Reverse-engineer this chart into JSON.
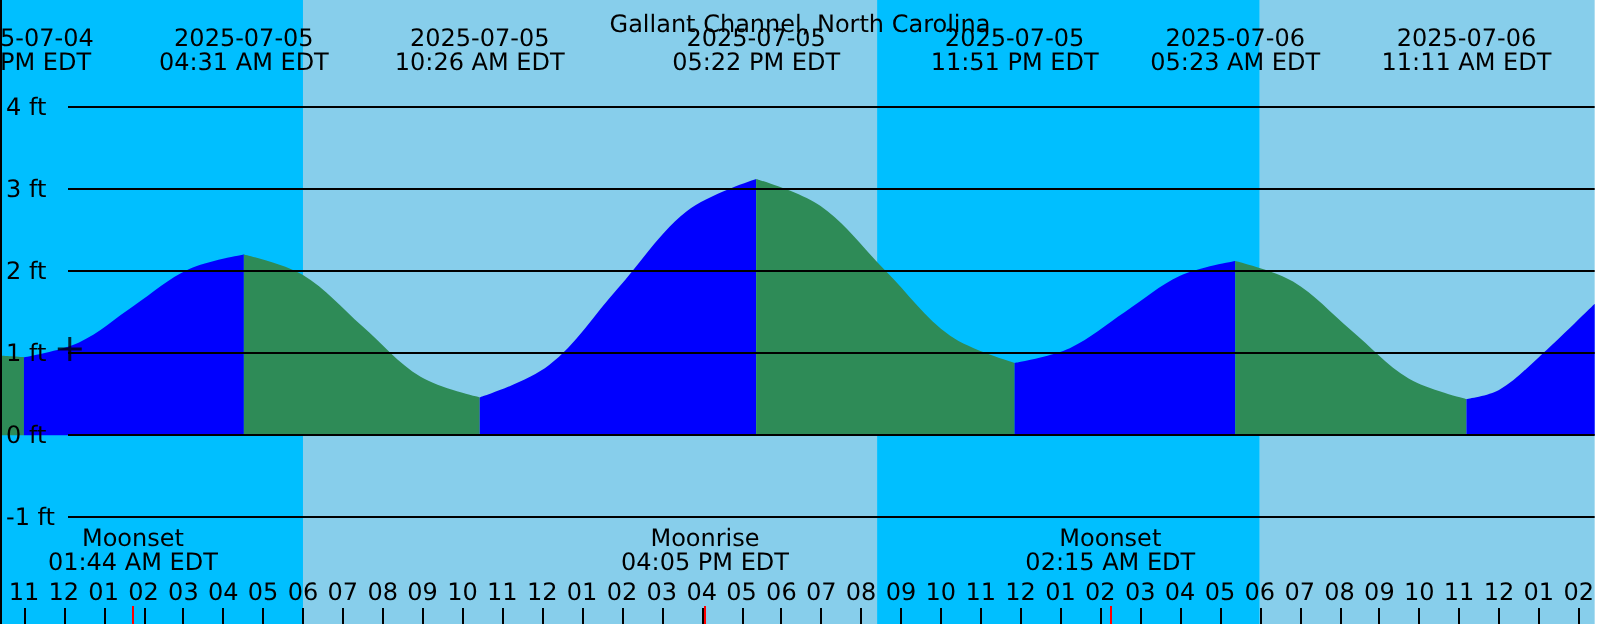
{
  "chart_data": {
    "type": "area",
    "title": "Gallant Channel, North Carolina",
    "xlim": [
      "2025-07-04T22:24",
      "2025-07-06T14:24"
    ],
    "ylim": [
      -2.3,
      5.3
    ],
    "xticks": [
      {
        "value": "2025-07-04T23:00",
        "label": "11"
      },
      {
        "value": "2025-07-05T00:00",
        "label": "12"
      },
      {
        "value": "2025-07-05T01:00",
        "label": "01"
      },
      {
        "value": "2025-07-05T02:00",
        "label": "02"
      },
      {
        "value": "2025-07-05T03:00",
        "label": "03"
      },
      {
        "value": "2025-07-05T04:00",
        "label": "04"
      },
      {
        "value": "2025-07-05T05:00",
        "label": "05"
      },
      {
        "value": "2025-07-05T06:00",
        "label": "06"
      },
      {
        "value": "2025-07-05T07:00",
        "label": "07"
      },
      {
        "value": "2025-07-05T08:00",
        "label": "08"
      },
      {
        "value": "2025-07-05T09:00",
        "label": "09"
      },
      {
        "value": "2025-07-05T10:00",
        "label": "10"
      },
      {
        "value": "2025-07-05T11:00",
        "label": "11"
      },
      {
        "value": "2025-07-05T12:00",
        "label": "12"
      },
      {
        "value": "2025-07-05T13:00",
        "label": "01"
      },
      {
        "value": "2025-07-05T14:00",
        "label": "02"
      },
      {
        "value": "2025-07-05T15:00",
        "label": "03"
      },
      {
        "value": "2025-07-05T16:00",
        "label": "04"
      },
      {
        "value": "2025-07-05T17:00",
        "label": "05"
      },
      {
        "value": "2025-07-05T18:00",
        "label": "06"
      },
      {
        "value": "2025-07-05T19:00",
        "label": "07"
      },
      {
        "value": "2025-07-05T20:00",
        "label": "08"
      },
      {
        "value": "2025-07-05T21:00",
        "label": "09"
      },
      {
        "value": "2025-07-05T22:00",
        "label": "10"
      },
      {
        "value": "2025-07-05T23:00",
        "label": "11"
      },
      {
        "value": "2025-07-06T00:00",
        "label": "12"
      },
      {
        "value": "2025-07-06T01:00",
        "label": "01"
      },
      {
        "value": "2025-07-06T02:00",
        "label": "02"
      },
      {
        "value": "2025-07-06T03:00",
        "label": "03"
      },
      {
        "value": "2025-07-06T04:00",
        "label": "04"
      },
      {
        "value": "2025-07-06T05:00",
        "label": "05"
      },
      {
        "value": "2025-07-06T06:00",
        "label": "06"
      },
      {
        "value": "2025-07-06T07:00",
        "label": "07"
      },
      {
        "value": "2025-07-06T08:00",
        "label": "08"
      },
      {
        "value": "2025-07-06T09:00",
        "label": "09"
      },
      {
        "value": "2025-07-06T10:00",
        "label": "10"
      },
      {
        "value": "2025-07-06T11:00",
        "label": "11"
      },
      {
        "value": "2025-07-06T12:00",
        "label": "12"
      },
      {
        "value": "2025-07-06T13:00",
        "label": "01"
      },
      {
        "value": "2025-07-06T14:00",
        "label": "02"
      }
    ],
    "yticks": [
      {
        "value": -1,
        "label": "-1 ft"
      },
      {
        "value": 0,
        "label": "0 ft"
      },
      {
        "value": 1,
        "label": "1 ft"
      },
      {
        "value": 2,
        "label": "2 ft"
      },
      {
        "value": 3,
        "label": "3 ft"
      },
      {
        "value": 4,
        "label": "4 ft"
      }
    ],
    "grid": "y",
    "series": [
      {
        "color": "#2e8b57",
        "x": [
          "2025-07-04T22:24",
          "2025-07-04T23:00"
        ],
        "values": [
          0.97,
          0.95
        ]
      },
      {
        "color": "#0000ff",
        "x": [
          "2025-07-04T23:00",
          "2025-07-05T00:23",
          "2025-07-05T01:46",
          "2025-07-05T03:08",
          "2025-07-05T04:31"
        ],
        "values": [
          0.95,
          1.13,
          1.58,
          2.02,
          2.2
        ]
      },
      {
        "color": "#2e8b57",
        "x": [
          "2025-07-05T04:31",
          "2025-07-05T06:00",
          "2025-07-05T07:29",
          "2025-07-05T08:57",
          "2025-07-05T10:26"
        ],
        "values": [
          2.2,
          1.95,
          1.33,
          0.71,
          0.46
        ]
      },
      {
        "color": "#0000ff",
        "x": [
          "2025-07-05T10:26",
          "2025-07-05T12:10",
          "2025-07-05T13:54",
          "2025-07-05T15:38",
          "2025-07-05T17:22"
        ],
        "values": [
          0.46,
          0.85,
          1.79,
          2.73,
          3.12
        ]
      },
      {
        "color": "#2e8b57",
        "x": [
          "2025-07-05T17:22",
          "2025-07-05T18:59",
          "2025-07-05T20:37",
          "2025-07-05T22:14",
          "2025-07-05T23:51"
        ],
        "values": [
          3.12,
          2.79,
          2.0,
          1.21,
          0.88
        ]
      },
      {
        "color": "#0000ff",
        "x": [
          "2025-07-05T23:51",
          "2025-07-06T01:14",
          "2025-07-06T02:37",
          "2025-07-06T04:00",
          "2025-07-06T05:23"
        ],
        "values": [
          0.88,
          1.06,
          1.5,
          1.94,
          2.12
        ]
      },
      {
        "color": "#2e8b57",
        "x": [
          "2025-07-06T05:23",
          "2025-07-06T06:50",
          "2025-07-06T08:17",
          "2025-07-06T09:44",
          "2025-07-06T11:11"
        ],
        "values": [
          2.12,
          1.87,
          1.28,
          0.69,
          0.44
        ]
      },
      {
        "color": "#0000ff",
        "x": [
          "2025-07-06T11:11",
          "2025-07-06T12:00",
          "2025-07-06T13:00",
          "2025-07-06T14:24"
        ],
        "values": [
          0.44,
          0.55,
          0.95,
          1.6
        ]
      },
      {
        "type": "scatter",
        "marker": "cross",
        "color": "#000000",
        "x": [
          "2025-07-05T00:09"
        ],
        "values": [
          1.05
        ]
      }
    ],
    "bands": [
      {
        "axis": "x",
        "from": "2025-07-04T22:24",
        "to": "2025-07-05T06:00",
        "color": "#00bfff"
      },
      {
        "axis": "x",
        "from": "2025-07-05T06:00",
        "to": "2025-07-05T20:24",
        "color": "#87ceeb"
      },
      {
        "axis": "x",
        "from": "2025-07-05T20:24",
        "to": "2025-07-06T06:00",
        "color": "#00bfff"
      },
      {
        "axis": "x",
        "from": "2025-07-06T06:00",
        "to": "2025-07-06T14:24",
        "color": "#87ceeb"
      }
    ],
    "annotations": [
      "5-07-04\nPM EDT",
      "2025-07-05\n04:31 AM EDT",
      "2025-07-05\n10:26 AM EDT",
      "2025-07-05\n05:22 PM EDT",
      "2025-07-05\n11:51 PM EDT",
      "2025-07-06\n05:23 AM EDT",
      "2025-07-06\n11:11 AM EDT"
    ],
    "ref_lines": [
      {
        "axis": "x",
        "value": "2025-07-05T01:44",
        "label": "Moonset\n01:44 AM EDT",
        "color": "#ff0000"
      },
      {
        "axis": "x",
        "value": "2025-07-05T16:05",
        "label": "Moonrise\n04:05 PM EDT",
        "color": "#ff0000"
      },
      {
        "axis": "x",
        "value": "2025-07-06T02:15",
        "label": "Moonset\n02:15 AM EDT",
        "color": "#ff0000"
      }
    ]
  }
}
